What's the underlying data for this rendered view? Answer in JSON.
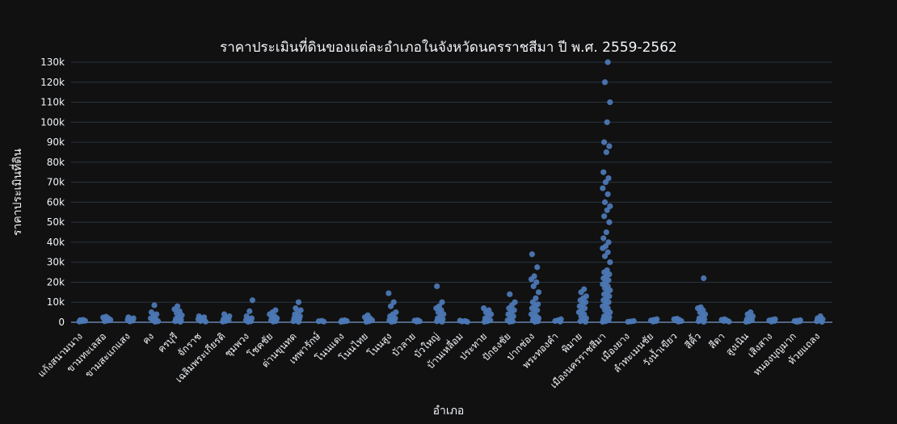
{
  "chart_data": {
    "type": "scatter",
    "title": "ราคาประเมินที่ดินของแต่ละอำเภอในจังหวัดนครราชสีมา ปี พ.ศ. 2559-2562",
    "xlabel": "อำเภอ",
    "ylabel": "ราคาประเมินที่ดิน",
    "ylim": [
      0,
      130000
    ],
    "ytick_labels": [
      "0",
      "10k",
      "20k",
      "30k",
      "40k",
      "50k",
      "60k",
      "70k",
      "80k",
      "90k",
      "100k",
      "110k",
      "120k",
      "130k"
    ],
    "grid": true,
    "legend": "none",
    "colors": {
      "background": "#111111",
      "grid": "#283442",
      "marker": "#636efa",
      "marker_fill": "#4c78b5",
      "text": "#f2f5fa"
    },
    "categories": [
      "แก้งสนามนาง",
      "ขามทะเลสอ",
      "ขามสะแกแสง",
      "คง",
      "ครบุรี",
      "จักราช",
      "เฉลิมพระเกียรติ",
      "ชุมพวง",
      "โชคชัย",
      "ด่านขุนทด",
      "เทพารักษ์",
      "โนนแดง",
      "โนนไทย",
      "โนนสูง",
      "บัวลาย",
      "บัวใหญ่",
      "บ้านเหลื่อม",
      "ประทาย",
      "ปักธงชัย",
      "ปากช่อง",
      "พระทองคำ",
      "พิมาย",
      "เมืองนครราชสีมา",
      "เมืองยาง",
      "ลำทะเมนชัย",
      "วังน้ำเขียว",
      "สีคิ้ว",
      "สีดา",
      "สูงเนิน",
      "เสิงสาง",
      "หนองบุญมาก",
      "ห้วยแถลง"
    ],
    "series": [
      {
        "values": [
          [
            300,
            500,
            700,
            1000,
            1200
          ],
          [
            500,
            800,
            1200,
            1600,
            2000,
            2400,
            2800
          ],
          [
            400,
            800,
            1200,
            1600,
            2000,
            2500
          ],
          [
            200,
            500,
            1000,
            1500,
            2000,
            3000,
            4000,
            5000,
            8500
          ],
          [
            200,
            500,
            800,
            1200,
            1800,
            2500,
            3500,
            4500,
            5500,
            6500,
            8000
          ],
          [
            300,
            600,
            1000,
            1500,
            2000,
            2500,
            3000
          ],
          [
            300,
            600,
            1000,
            1500,
            2000,
            3000,
            4000
          ],
          [
            200,
            500,
            1000,
            1500,
            2000,
            3000,
            5500,
            11000
          ],
          [
            300,
            600,
            1000,
            1500,
            2000,
            2500,
            3000,
            4000,
            5000,
            6000
          ],
          [
            200,
            500,
            1000,
            1500,
            2000,
            2500,
            3000,
            4000,
            5000,
            6000,
            7000,
            10000
          ],
          [
            300,
            500,
            700
          ],
          [
            200,
            400,
            600,
            800,
            1000
          ],
          [
            200,
            500,
            1000,
            1500,
            2000,
            2500,
            3500
          ],
          [
            200,
            500,
            1000,
            1500,
            2000,
            3000,
            4000,
            5000,
            8000,
            10000,
            14500
          ],
          [
            300,
            500,
            800,
            1000
          ],
          [
            200,
            500,
            1000,
            1500,
            2000,
            3000,
            4000,
            5000,
            6000,
            7000,
            8000,
            10000,
            18000
          ],
          [
            200,
            400,
            600,
            800
          ],
          [
            200,
            500,
            1000,
            2000,
            3000,
            4000,
            5000,
            6000,
            7000
          ],
          [
            200,
            500,
            1000,
            2000,
            3000,
            4000,
            5000,
            6000,
            7000,
            8500,
            10000,
            14000
          ],
          [
            200,
            500,
            1000,
            1500,
            2000,
            2500,
            3000,
            4000,
            5000,
            6000,
            7000,
            8000,
            9000,
            10000,
            12000,
            15000,
            18000,
            20000,
            21500,
            23000,
            27500,
            34000
          ],
          [
            300,
            600,
            1000,
            1500
          ],
          [
            200,
            500,
            1000,
            2000,
            3000,
            4000,
            5000,
            6000,
            7000,
            8000,
            9000,
            10000,
            11000,
            12000,
            13000,
            15000,
            16500
          ],
          [
            200,
            500,
            1000,
            1500,
            2000,
            2500,
            3000,
            4000,
            5000,
            6000,
            7000,
            8000,
            9000,
            10000,
            11000,
            12000,
            13000,
            14000,
            15000,
            16000,
            17000,
            18000,
            19000,
            20000,
            21000,
            22000,
            23000,
            24000,
            25000,
            26000,
            30000,
            33000,
            35000,
            37000,
            38000,
            40000,
            42000,
            45000,
            50000,
            53000,
            56000,
            58000,
            60000,
            64000,
            67000,
            70000,
            72000,
            75000,
            85000,
            88000,
            90000,
            100000,
            110000,
            120000,
            130000
          ],
          [
            200,
            400,
            600
          ],
          [
            300,
            600,
            900,
            1200,
            1500
          ],
          [
            300,
            600,
            900,
            1200,
            1500,
            1800
          ],
          [
            200,
            500,
            1000,
            1500,
            2000,
            3000,
            4000,
            5000,
            6000,
            7000,
            7500,
            22000
          ],
          [
            300,
            600,
            900,
            1200,
            1500
          ],
          [
            200,
            500,
            1000,
            1500,
            2000,
            3000,
            4000,
            5000
          ],
          [
            300,
            600,
            900,
            1200,
            1500
          ],
          [
            200,
            400,
            600,
            800,
            1000
          ],
          [
            200,
            500,
            1000,
            1500,
            2000,
            3000
          ]
        ]
      }
    ]
  }
}
